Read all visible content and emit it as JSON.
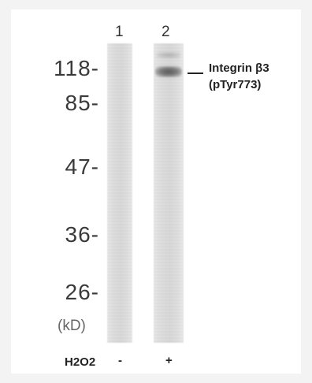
{
  "lanes": [
    "1",
    "2"
  ],
  "markers": [
    {
      "label": "118-"
    },
    {
      "label": "85-"
    },
    {
      "label": "47-"
    },
    {
      "label": "36-"
    },
    {
      "label": "26-"
    }
  ],
  "unit_label": "(kD)",
  "annotation": {
    "dash": "-",
    "line1": "Integrin β3",
    "line2": "(pTyr773)"
  },
  "treatment": {
    "label": "H2O2",
    "values": [
      "-",
      "+"
    ]
  }
}
